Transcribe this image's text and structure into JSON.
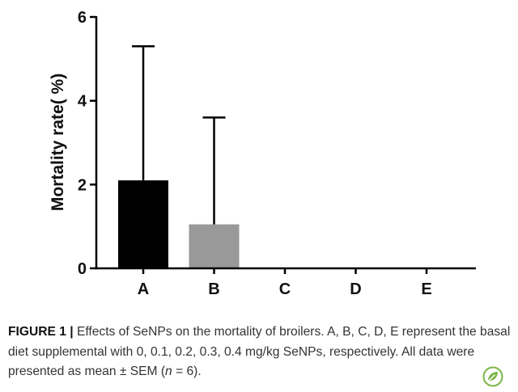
{
  "chart_data": {
    "type": "bar",
    "categories": [
      "A",
      "B",
      "C",
      "D",
      "E"
    ],
    "values": [
      2.1,
      1.05,
      0,
      0,
      0
    ],
    "error_upper": [
      5.3,
      3.6,
      0,
      0,
      0
    ],
    "colors": [
      "#000000",
      "#999999",
      "#999999",
      "#999999",
      "#999999"
    ],
    "ylabel": "Mortality rate( %)",
    "xlabel": "",
    "ylim": [
      0,
      6
    ],
    "yticks": [
      0,
      2,
      4,
      6
    ],
    "grid": false,
    "legend": "none"
  },
  "caption": {
    "label": "FIGURE 1 |",
    "text": "Effects of SeNPs on the mortality of broilers. A, B, C, D, E represent the basal diet supplemental with 0, 0.1, 0.2, 0.3, 0.4 mg/kg SeNPs, respectively. All data were presented as mean ± SEM (",
    "n_symbol": "n",
    "n_value": " = 6)."
  },
  "logo": {
    "icon": "frontiers-leaf-logo",
    "color": "#7ab648"
  }
}
